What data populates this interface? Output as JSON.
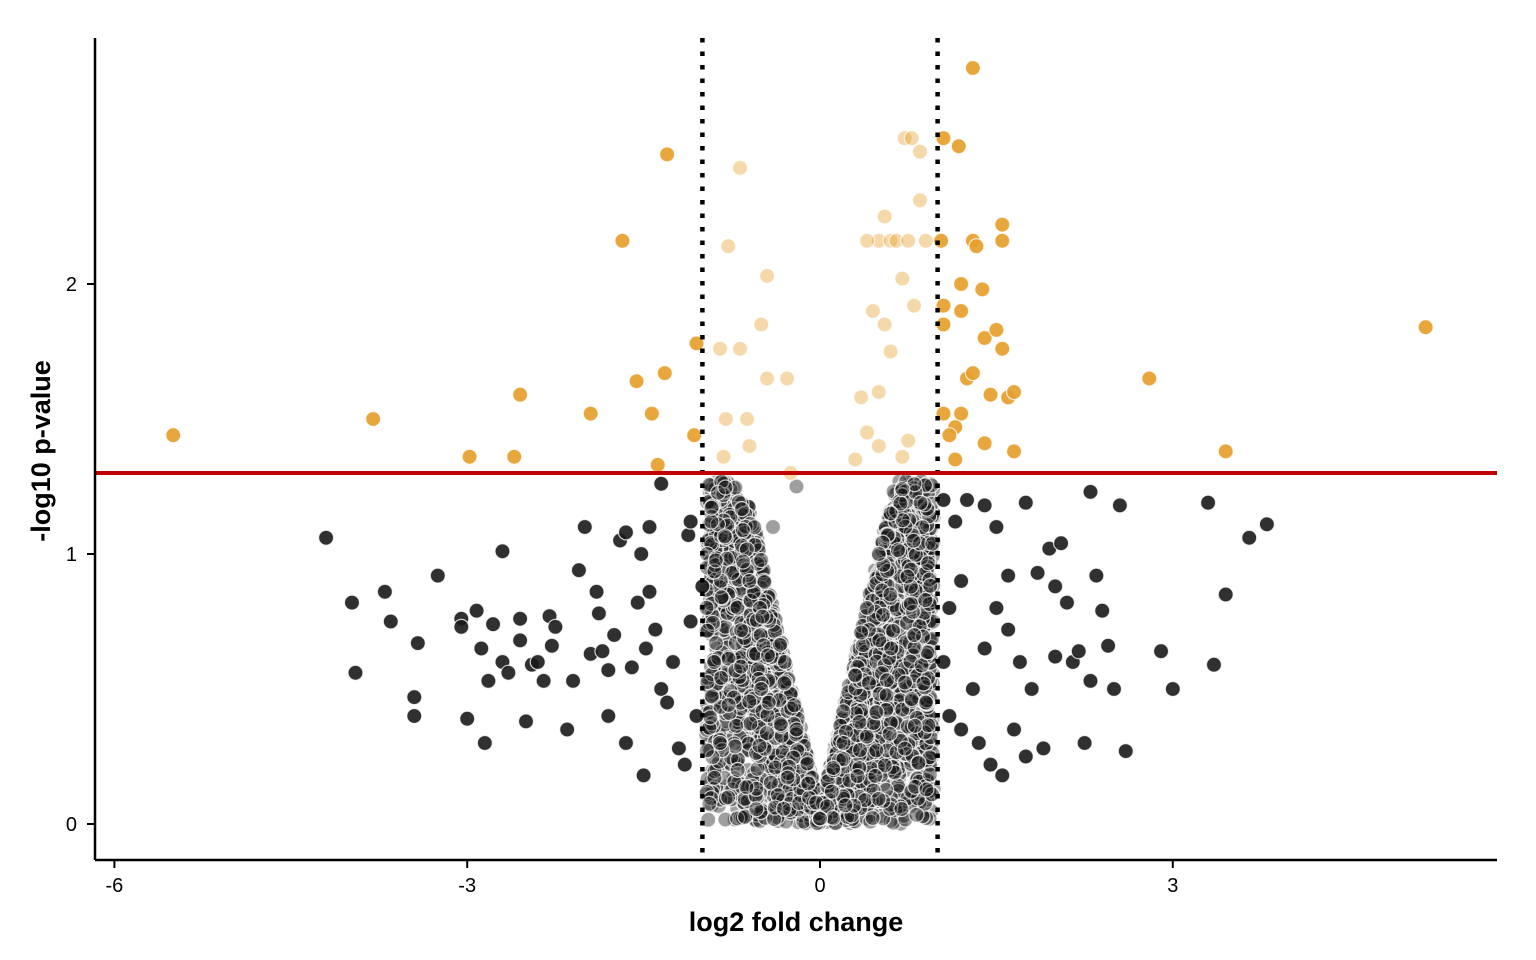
{
  "chart_data": {
    "type": "scatter",
    "title": "",
    "xlabel": "log2 fold change",
    "ylabel": "-log10 p-value",
    "xlim": [
      -6.2,
      5.8
    ],
    "ylim": [
      -0.13,
      2.9
    ],
    "xticks": [
      -6,
      -3,
      0,
      3
    ],
    "yticks": [
      0,
      1,
      2
    ],
    "grid": false,
    "legend": "none",
    "thresholds": {
      "fold_change_lines": [
        -1,
        1
      ],
      "fold_change_style": "dotted",
      "pvalue_line": 1.3,
      "pvalue_line_color": "#c00000"
    },
    "colors": {
      "significant": "#e69f2c",
      "not_significant": "#1a1a1a",
      "dot_outline": "#ffffff"
    },
    "notes_visual": "light-colored points lie between the fold change lines (|log2FC| < 1); dense core of ~thousands of points near origin",
    "significant_points": [
      [
        -5.5,
        1.44
      ],
      [
        -3.8,
        1.5
      ],
      [
        -2.98,
        1.36
      ],
      [
        -2.6,
        1.36
      ],
      [
        -2.55,
        1.59
      ],
      [
        -1.95,
        1.52
      ],
      [
        -1.68,
        2.16
      ],
      [
        -1.56,
        1.64
      ],
      [
        -1.43,
        1.52
      ],
      [
        -1.38,
        1.33
      ],
      [
        -1.32,
        1.67
      ],
      [
        -1.3,
        2.48
      ],
      [
        -1.05,
        1.78
      ],
      [
        -1.07,
        1.44
      ],
      [
        -0.85,
        1.76
      ],
      [
        -0.78,
        2.14
      ],
      [
        -0.68,
        2.43
      ],
      [
        -0.62,
        1.5
      ],
      [
        -0.68,
        1.76
      ],
      [
        -0.5,
        1.85
      ],
      [
        -0.45,
        2.03
      ],
      [
        -0.45,
        1.65
      ],
      [
        -0.28,
        1.65
      ],
      [
        -0.8,
        1.5
      ],
      [
        -0.82,
        1.36
      ],
      [
        -0.6,
        1.4
      ],
      [
        -0.25,
        1.3
      ],
      [
        0.55,
        2.25
      ],
      [
        0.72,
        2.54
      ],
      [
        0.78,
        2.54
      ],
      [
        0.85,
        2.49
      ],
      [
        0.85,
        2.31
      ],
      [
        0.5,
        2.16
      ],
      [
        0.6,
        2.16
      ],
      [
        0.65,
        2.16
      ],
      [
        0.75,
        2.16
      ],
      [
        0.9,
        2.16
      ],
      [
        0.4,
        2.16
      ],
      [
        0.7,
        2.02
      ],
      [
        0.8,
        1.92
      ],
      [
        0.45,
        1.9
      ],
      [
        0.55,
        1.85
      ],
      [
        0.6,
        1.75
      ],
      [
        0.5,
        1.6
      ],
      [
        0.35,
        1.58
      ],
      [
        0.4,
        1.45
      ],
      [
        0.5,
        1.4
      ],
      [
        0.3,
        1.35
      ],
      [
        0.7,
        1.36
      ],
      [
        0.75,
        1.42
      ],
      [
        1.05,
        2.54
      ],
      [
        1.18,
        2.51
      ],
      [
        1.03,
        2.16
      ],
      [
        1.3,
        2.16
      ],
      [
        1.33,
        2.14
      ],
      [
        1.55,
        2.22
      ],
      [
        1.55,
        2.16
      ],
      [
        1.2,
        2.0
      ],
      [
        1.38,
        1.98
      ],
      [
        1.05,
        1.92
      ],
      [
        1.2,
        1.9
      ],
      [
        1.05,
        1.85
      ],
      [
        1.4,
        1.8
      ],
      [
        1.5,
        1.83
      ],
      [
        1.55,
        1.76
      ],
      [
        1.25,
        1.65
      ],
      [
        1.3,
        1.67
      ],
      [
        1.45,
        1.59
      ],
      [
        1.6,
        1.58
      ],
      [
        1.65,
        1.6
      ],
      [
        1.2,
        1.52
      ],
      [
        1.15,
        1.47
      ],
      [
        1.05,
        1.52
      ],
      [
        1.1,
        1.44
      ],
      [
        1.4,
        1.41
      ],
      [
        1.65,
        1.38
      ],
      [
        1.15,
        1.35
      ],
      [
        1.3,
        2.8
      ],
      [
        2.8,
        1.65
      ],
      [
        3.45,
        1.38
      ],
      [
        5.15,
        1.84
      ]
    ],
    "not_significant_points": [
      [
        -4.2,
        1.06
      ],
      [
        -3.98,
        0.82
      ],
      [
        -3.95,
        0.56
      ],
      [
        -3.7,
        0.86
      ],
      [
        -3.65,
        0.75
      ],
      [
        -3.45,
        0.47
      ],
      [
        -3.45,
        0.4
      ],
      [
        -3.42,
        0.67
      ],
      [
        -3.25,
        0.92
      ],
      [
        -3.05,
        0.76
      ],
      [
        -3.05,
        0.73
      ],
      [
        -3.0,
        0.39
      ],
      [
        -2.92,
        0.79
      ],
      [
        -2.88,
        0.65
      ],
      [
        -2.85,
        0.3
      ],
      [
        -2.82,
        0.53
      ],
      [
        -2.78,
        0.74
      ],
      [
        -2.7,
        0.6
      ],
      [
        -2.7,
        1.01
      ],
      [
        -2.65,
        0.56
      ],
      [
        -2.55,
        0.76
      ],
      [
        -2.55,
        0.68
      ],
      [
        -2.5,
        0.38
      ],
      [
        -2.45,
        0.59
      ],
      [
        -2.4,
        0.6
      ],
      [
        -2.35,
        0.53
      ],
      [
        -2.3,
        0.77
      ],
      [
        -2.28,
        0.66
      ],
      [
        -2.25,
        0.73
      ],
      [
        -2.1,
        0.53
      ],
      [
        -2.05,
        0.94
      ],
      [
        -2.0,
        1.1
      ],
      [
        -1.95,
        0.63
      ],
      [
        -1.9,
        0.86
      ],
      [
        -1.88,
        0.78
      ],
      [
        -1.85,
        0.64
      ],
      [
        -1.8,
        0.57
      ],
      [
        -1.75,
        0.7
      ],
      [
        -1.7,
        1.05
      ],
      [
        -1.65,
        1.08
      ],
      [
        -1.6,
        0.58
      ],
      [
        -1.55,
        0.82
      ],
      [
        -1.52,
        1.0
      ],
      [
        -1.48,
        0.65
      ],
      [
        -1.45,
        0.86
      ],
      [
        -1.4,
        0.72
      ],
      [
        -1.35,
        0.5
      ],
      [
        -1.3,
        0.45
      ],
      [
        -1.25,
        0.6
      ],
      [
        -1.2,
        0.28
      ],
      [
        -1.15,
        0.22
      ],
      [
        -1.12,
        1.07
      ],
      [
        -1.1,
        0.75
      ],
      [
        -1.05,
        0.4
      ],
      [
        -1.5,
        0.18
      ],
      [
        -1.65,
        0.3
      ],
      [
        -1.8,
        0.4
      ],
      [
        -2.15,
        0.35
      ],
      [
        -1.35,
        1.26
      ],
      [
        -1.1,
        1.12
      ],
      [
        -1.45,
        1.1
      ],
      [
        -1.0,
        0.88
      ],
      [
        -0.9,
        0.6
      ],
      [
        -0.85,
        0.3
      ],
      [
        1.05,
        1.2
      ],
      [
        1.15,
        1.12
      ],
      [
        1.25,
        1.2
      ],
      [
        1.4,
        1.18
      ],
      [
        1.5,
        1.1
      ],
      [
        1.6,
        0.92
      ],
      [
        1.75,
        1.19
      ],
      [
        1.85,
        0.93
      ],
      [
        1.95,
        1.02
      ],
      [
        2.0,
        0.88
      ],
      [
        2.05,
        1.04
      ],
      [
        2.1,
        0.82
      ],
      [
        2.15,
        0.6
      ],
      [
        2.2,
        0.64
      ],
      [
        2.25,
        0.3
      ],
      [
        2.3,
        1.23
      ],
      [
        2.35,
        0.92
      ],
      [
        2.4,
        0.79
      ],
      [
        2.45,
        0.66
      ],
      [
        2.5,
        0.5
      ],
      [
        2.55,
        1.18
      ],
      [
        2.6,
        0.27
      ],
      [
        2.3,
        0.53
      ],
      [
        2.0,
        0.62
      ],
      [
        1.9,
        0.28
      ],
      [
        1.8,
        0.5
      ],
      [
        1.7,
        0.6
      ],
      [
        1.6,
        0.72
      ],
      [
        1.5,
        0.8
      ],
      [
        1.4,
        0.65
      ],
      [
        1.3,
        0.5
      ],
      [
        1.2,
        0.35
      ],
      [
        1.1,
        0.4
      ],
      [
        1.05,
        0.6
      ],
      [
        1.1,
        0.8
      ],
      [
        1.2,
        0.9
      ],
      [
        1.35,
        0.3
      ],
      [
        1.45,
        0.22
      ],
      [
        1.55,
        0.18
      ],
      [
        1.65,
        0.35
      ],
      [
        1.75,
        0.25
      ],
      [
        2.9,
        0.64
      ],
      [
        3.0,
        0.5
      ],
      [
        3.3,
        1.19
      ],
      [
        3.35,
        0.59
      ],
      [
        3.45,
        0.85
      ],
      [
        3.65,
        1.06
      ],
      [
        3.8,
        1.11
      ],
      [
        -0.7,
        0.2
      ],
      [
        -0.5,
        0.5
      ],
      [
        -0.3,
        0.6
      ],
      [
        -0.2,
        0.35
      ],
      [
        -0.1,
        0.15
      ],
      [
        0.0,
        0.02
      ],
      [
        0.1,
        0.12
      ],
      [
        0.2,
        0.3
      ],
      [
        0.3,
        0.55
      ],
      [
        0.4,
        0.8
      ],
      [
        0.5,
        1.0
      ],
      [
        0.6,
        1.15
      ],
      [
        0.7,
        1.24
      ],
      [
        0.8,
        0.7
      ],
      [
        0.9,
        0.45
      ],
      [
        -0.6,
        0.9
      ],
      [
        -0.4,
        1.1
      ],
      [
        -0.2,
        1.25
      ]
    ]
  }
}
